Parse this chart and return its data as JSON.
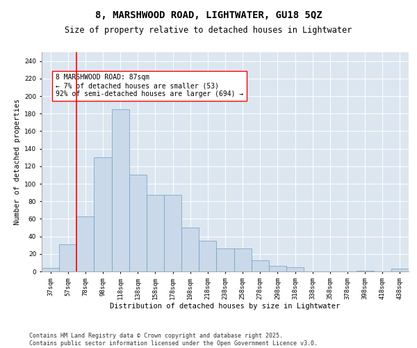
{
  "title": "8, MARSHWOOD ROAD, LIGHTWATER, GU18 5QZ",
  "subtitle": "Size of property relative to detached houses in Lightwater",
  "xlabel": "Distribution of detached houses by size in Lightwater",
  "ylabel": "Number of detached properties",
  "bar_color": "#c9d9ea",
  "bar_edge_color": "#6a9cbf",
  "bg_color": "#dce6f0",
  "grid_color": "#ffffff",
  "categories": [
    "37sqm",
    "57sqm",
    "78sqm",
    "98sqm",
    "118sqm",
    "138sqm",
    "158sqm",
    "178sqm",
    "198sqm",
    "218sqm",
    "238sqm",
    "258sqm",
    "278sqm",
    "298sqm",
    "318sqm",
    "338sqm",
    "358sqm",
    "378sqm",
    "398sqm",
    "418sqm",
    "438sqm"
  ],
  "values": [
    4,
    31,
    63,
    130,
    185,
    110,
    87,
    87,
    50,
    35,
    26,
    26,
    13,
    6,
    5,
    0,
    0,
    0,
    1,
    0,
    3
  ],
  "ylim": [
    0,
    250
  ],
  "yticks": [
    0,
    20,
    40,
    60,
    80,
    100,
    120,
    140,
    160,
    180,
    200,
    220,
    240
  ],
  "vline_index": 2,
  "annotation_text": "8 MARSHWOOD ROAD: 87sqm\n← 7% of detached houses are smaller (53)\n92% of semi-detached houses are larger (694) →",
  "footer": "Contains HM Land Registry data © Crown copyright and database right 2025.\nContains public sector information licensed under the Open Government Licence v3.0.",
  "title_fontsize": 10,
  "subtitle_fontsize": 8.5,
  "axis_label_fontsize": 7.5,
  "tick_fontsize": 6.5,
  "annotation_fontsize": 7,
  "footer_fontsize": 6
}
